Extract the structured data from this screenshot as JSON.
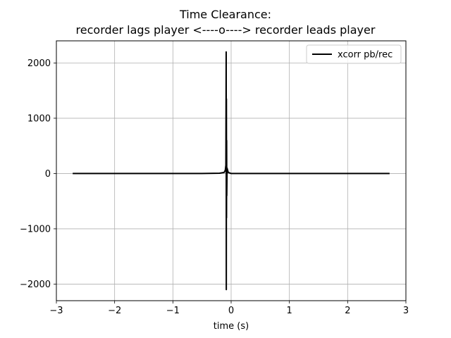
{
  "chart_data": {
    "type": "line",
    "title_line1": "Time Clearance:",
    "title_line2": "recorder lags  player <----o----> recorder leads player",
    "xlabel": "time (s)",
    "ylabel": "",
    "xlim": [
      -3,
      3
    ],
    "ylim": [
      -2300,
      2400
    ],
    "xticks": [
      -3,
      -2,
      -1,
      0,
      1,
      2,
      3
    ],
    "xtick_labels": [
      "−3",
      "−2",
      "−1",
      "0",
      "1",
      "2",
      "3"
    ],
    "yticks": [
      -2000,
      -1000,
      0,
      1000,
      2000
    ],
    "ytick_labels": [
      "−2000",
      "−1000",
      "0",
      "1000",
      "2000"
    ],
    "grid": true,
    "legend_position": "top-right",
    "series": [
      {
        "name": "xcorr pb/rec",
        "color": "#000000",
        "x": [
          -2.72,
          -2.0,
          -1.0,
          -0.5,
          -0.2,
          -0.12,
          -0.1,
          -0.09,
          -0.085,
          -0.083,
          -0.081,
          -0.079,
          -0.077,
          -0.075,
          -0.07,
          -0.05,
          0.0,
          0.45,
          1.0,
          2.0,
          2.72
        ],
        "y": [
          0,
          0,
          0,
          0,
          5,
          20,
          60,
          150,
          2200,
          -2100,
          1350,
          -800,
          600,
          -400,
          100,
          20,
          0,
          0,
          0,
          0,
          0
        ]
      }
    ]
  }
}
